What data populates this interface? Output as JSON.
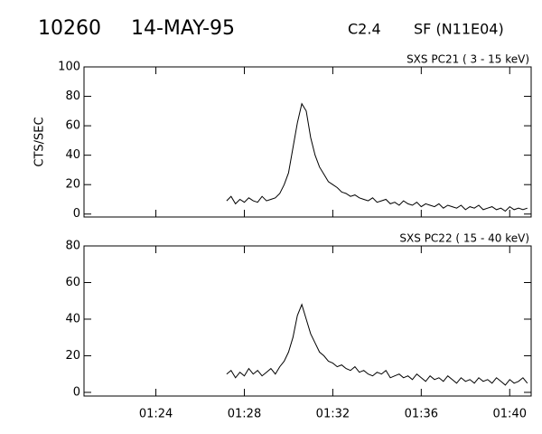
{
  "header": {
    "id": "10260",
    "date": "14-MAY-95",
    "class": "C2.4",
    "flare": "SF (N11E04)"
  },
  "chart_data": [
    {
      "type": "line",
      "label": "SXS PC21 (  3 - 15 keV)",
      "ylabel": "CTS/SEC",
      "color": "#000000",
      "xlim": [
        20.75,
        40.97
      ],
      "xticks": [
        24,
        28,
        32,
        36,
        40
      ],
      "ylim": [
        -2,
        100
      ],
      "yticks": [
        0,
        20,
        40,
        60,
        80,
        100
      ],
      "x": [
        27.2,
        27.4,
        27.6,
        27.8,
        28.0,
        28.2,
        28.4,
        28.6,
        28.8,
        29.0,
        29.2,
        29.4,
        29.6,
        29.8,
        30.0,
        30.2,
        30.4,
        30.6,
        30.8,
        31.0,
        31.2,
        31.4,
        31.6,
        31.8,
        32.0,
        32.2,
        32.4,
        32.6,
        32.8,
        33.0,
        33.2,
        33.4,
        33.6,
        33.8,
        34.0,
        34.2,
        34.4,
        34.6,
        34.8,
        35.0,
        35.2,
        35.4,
        35.6,
        35.8,
        36.0,
        36.2,
        36.4,
        36.6,
        36.8,
        37.0,
        37.2,
        37.4,
        37.6,
        37.8,
        38.0,
        38.2,
        38.4,
        38.6,
        38.8,
        39.0,
        39.2,
        39.4,
        39.6,
        39.8,
        40.0,
        40.2,
        40.4,
        40.6,
        40.8
      ],
      "values": [
        9,
        12,
        7,
        10,
        8,
        11,
        9,
        8,
        12,
        9,
        10,
        11,
        14,
        20,
        28,
        45,
        62,
        75,
        70,
        52,
        40,
        32,
        27,
        22,
        20,
        18,
        15,
        14,
        12,
        13,
        11,
        10,
        9,
        11,
        8,
        9,
        10,
        7,
        8,
        6,
        9,
        7,
        6,
        8,
        5,
        7,
        6,
        5,
        7,
        4,
        6,
        5,
        4,
        6,
        3,
        5,
        4,
        6,
        3,
        4,
        5,
        3,
        4,
        2,
        5,
        3,
        4,
        3,
        4
      ]
    },
    {
      "type": "line",
      "label": "SXS PC22  ( 15 - 40 keV)",
      "color": "#000000",
      "xlim": [
        20.75,
        40.97
      ],
      "xticks": [
        {
          "value": 24,
          "label": "01:24"
        },
        {
          "value": 28,
          "label": "01:28"
        },
        {
          "value": 32,
          "label": "01:32"
        },
        {
          "value": 36,
          "label": "01:36"
        },
        {
          "value": 40,
          "label": "01:40"
        }
      ],
      "ylim": [
        -2,
        80
      ],
      "yticks": [
        0,
        20,
        40,
        60,
        80
      ],
      "x": [
        27.2,
        27.4,
        27.6,
        27.8,
        28.0,
        28.2,
        28.4,
        28.6,
        28.8,
        29.0,
        29.2,
        29.4,
        29.6,
        29.8,
        30.0,
        30.2,
        30.4,
        30.6,
        30.8,
        31.0,
        31.2,
        31.4,
        31.6,
        31.8,
        32.0,
        32.2,
        32.4,
        32.6,
        32.8,
        33.0,
        33.2,
        33.4,
        33.6,
        33.8,
        34.0,
        34.2,
        34.4,
        34.6,
        34.8,
        35.0,
        35.2,
        35.4,
        35.6,
        35.8,
        36.0,
        36.2,
        36.4,
        36.6,
        36.8,
        37.0,
        37.2,
        37.4,
        37.6,
        37.8,
        38.0,
        38.2,
        38.4,
        38.6,
        38.8,
        39.0,
        39.2,
        39.4,
        39.6,
        39.8,
        40.0,
        40.2,
        40.4,
        40.6,
        40.8
      ],
      "values": [
        10,
        12,
        8,
        11,
        9,
        13,
        10,
        12,
        9,
        11,
        13,
        10,
        14,
        17,
        22,
        30,
        42,
        48,
        40,
        32,
        27,
        22,
        20,
        17,
        16,
        14,
        15,
        13,
        12,
        14,
        11,
        12,
        10,
        9,
        11,
        10,
        12,
        8,
        9,
        10,
        8,
        9,
        7,
        10,
        8,
        6,
        9,
        7,
        8,
        6,
        9,
        7,
        5,
        8,
        6,
        7,
        5,
        8,
        6,
        7,
        5,
        8,
        6,
        4,
        7,
        5,
        6,
        8,
        5
      ]
    }
  ]
}
